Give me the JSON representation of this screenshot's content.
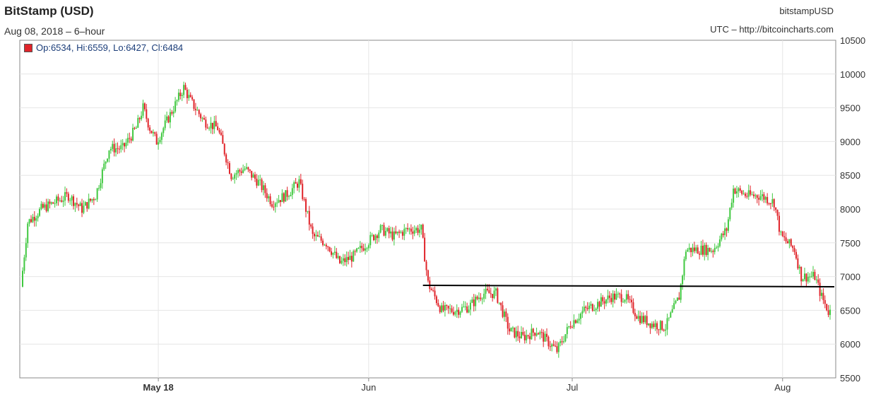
{
  "header": {
    "title": "BitStamp (USD)",
    "subtitle": "Aug 08, 2018 – 6–hour",
    "symbol": "bitstampUSD",
    "source": "UTC – http://bitcoincharts.com"
  },
  "legend": {
    "text": "Op:6534, Hi:6559, Lo:6427, Cl:6484",
    "color": "#e0242a"
  },
  "chart_data": {
    "type": "candlestick",
    "title": "BitStamp (USD)",
    "ylim": [
      5500,
      10500
    ],
    "yticks": [
      5500,
      6000,
      6500,
      7000,
      7500,
      8000,
      8500,
      9000,
      9500,
      10000,
      10500
    ],
    "ytick_labels": [
      "5500",
      "6000",
      "6500",
      "7000",
      "7500",
      "8000",
      "8500",
      "9000",
      "9500",
      "10000",
      "10500"
    ],
    "xlim": [
      "2018-04-11",
      "2018-08-08"
    ],
    "xticks": [
      {
        "date": "2018-05-01",
        "label": "May 18",
        "bold": true
      },
      {
        "date": "2018-06-01",
        "label": "Jun",
        "bold": false
      },
      {
        "date": "2018-07-01",
        "label": "Jul",
        "bold": false
      },
      {
        "date": "2018-08-01",
        "label": "Aug",
        "bold": false
      }
    ],
    "grid": true,
    "up_color": "#40c840",
    "down_color": "#e0242a",
    "close_path": [
      [
        "2018-04-11",
        6850
      ],
      [
        "2018-04-12",
        7800
      ],
      [
        "2018-04-14",
        8000
      ],
      [
        "2018-04-16",
        8100
      ],
      [
        "2018-04-18",
        8200
      ],
      [
        "2018-04-20",
        8000
      ],
      [
        "2018-04-22",
        8200
      ],
      [
        "2018-04-24",
        8900
      ],
      [
        "2018-04-26",
        8900
      ],
      [
        "2018-04-28",
        9200
      ],
      [
        "2018-04-29",
        9500
      ],
      [
        "2018-04-30",
        9200
      ],
      [
        "2018-05-01",
        9000
      ],
      [
        "2018-05-02",
        9200
      ],
      [
        "2018-05-04",
        9600
      ],
      [
        "2018-05-05",
        9800
      ],
      [
        "2018-05-06",
        9600
      ],
      [
        "2018-05-08",
        9300
      ],
      [
        "2018-05-10",
        9200
      ],
      [
        "2018-05-12",
        8500
      ],
      [
        "2018-05-14",
        8600
      ],
      [
        "2018-05-16",
        8400
      ],
      [
        "2018-05-18",
        8100
      ],
      [
        "2018-05-20",
        8200
      ],
      [
        "2018-05-22",
        8400
      ],
      [
        "2018-05-24",
        7600
      ],
      [
        "2018-05-26",
        7500
      ],
      [
        "2018-05-28",
        7200
      ],
      [
        "2018-05-30",
        7300
      ],
      [
        "2018-06-01",
        7500
      ],
      [
        "2018-06-03",
        7700
      ],
      [
        "2018-06-05",
        7600
      ],
      [
        "2018-06-07",
        7700
      ],
      [
        "2018-06-09",
        7700
      ],
      [
        "2018-06-10",
        6900
      ],
      [
        "2018-06-12",
        6500
      ],
      [
        "2018-06-14",
        6500
      ],
      [
        "2018-06-16",
        6550
      ],
      [
        "2018-06-18",
        6750
      ],
      [
        "2018-06-20",
        6750
      ],
      [
        "2018-06-22",
        6200
      ],
      [
        "2018-06-24",
        6100
      ],
      [
        "2018-06-26",
        6200
      ],
      [
        "2018-06-28",
        6000
      ],
      [
        "2018-06-29",
        5900
      ],
      [
        "2018-07-01",
        6300
      ],
      [
        "2018-07-03",
        6500
      ],
      [
        "2018-07-05",
        6600
      ],
      [
        "2018-07-07",
        6700
      ],
      [
        "2018-07-09",
        6700
      ],
      [
        "2018-07-11",
        6400
      ],
      [
        "2018-07-13",
        6300
      ],
      [
        "2018-07-15",
        6250
      ],
      [
        "2018-07-17",
        6700
      ],
      [
        "2018-07-18",
        7400
      ],
      [
        "2018-07-20",
        7400
      ],
      [
        "2018-07-22",
        7400
      ],
      [
        "2018-07-24",
        7700
      ],
      [
        "2018-07-25",
        8300
      ],
      [
        "2018-07-27",
        8200
      ],
      [
        "2018-07-29",
        8200
      ],
      [
        "2018-07-31",
        8100
      ],
      [
        "2018-08-01",
        7600
      ],
      [
        "2018-08-03",
        7400
      ],
      [
        "2018-08-04",
        7000
      ],
      [
        "2018-08-06",
        7000
      ],
      [
        "2018-08-07",
        6700
      ],
      [
        "2018-08-08",
        6484
      ]
    ],
    "support_line": {
      "from": [
        "2018-06-09",
        6870
      ],
      "to": [
        "2018-08-08",
        6850
      ]
    }
  }
}
